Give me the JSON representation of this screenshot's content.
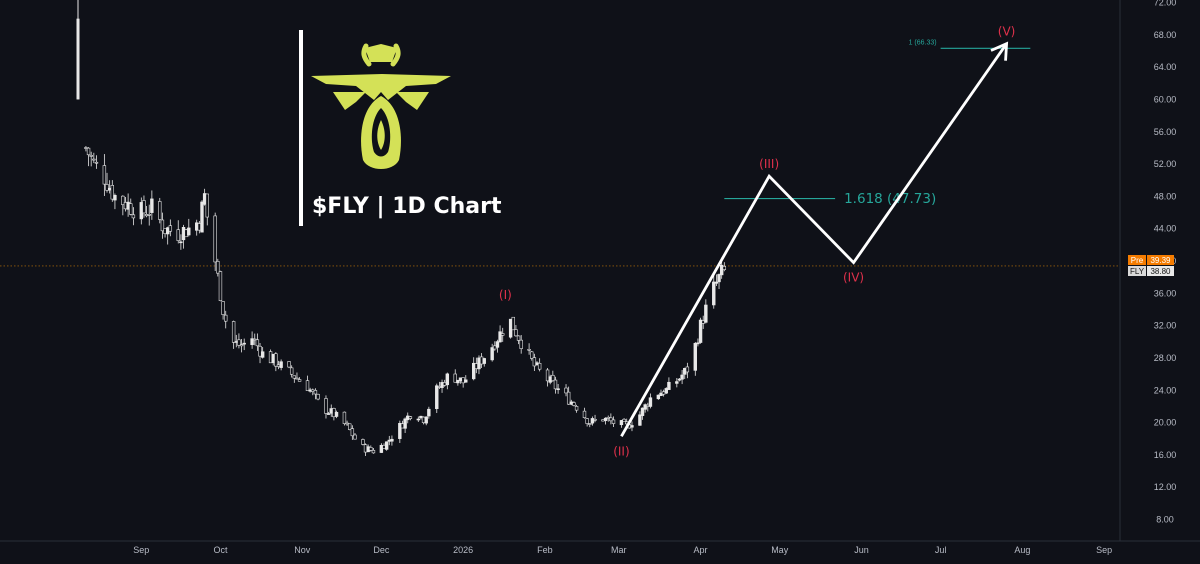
{
  "colors": {
    "background": "#0f1118",
    "candle": "#e8e8e8",
    "projection": "#ffffff",
    "wave_label": "#e0314b",
    "fib": "#26a69a",
    "pre_tag": "#ff9800",
    "logo": "#d4e157",
    "price_line": "#ff9800"
  },
  "chart_title": "$FLY | 1D Chart",
  "logo_icon": "firefly-logo-icon",
  "chart_data": {
    "type": "candlestick",
    "title": "$FLY | 1D Chart",
    "ylim": [
      6,
      73
    ],
    "y_ticks": [
      "72.00",
      "68.00",
      "64.00",
      "60.00",
      "56.00",
      "52.00",
      "48.00",
      "44.00",
      "40.00",
      "36.00",
      "32.00",
      "28.00",
      "24.00",
      "20.00",
      "16.00",
      "12.00",
      "8.00"
    ],
    "y_tick_values": [
      72,
      68,
      64,
      60,
      56,
      52,
      48,
      44,
      40,
      36,
      32,
      28,
      24,
      20,
      16,
      12,
      8
    ],
    "x_ticks": [
      "Sep",
      "Oct",
      "Nov",
      "Dec",
      "2026",
      "Feb",
      "Mar",
      "Apr",
      "May",
      "Jun",
      "Jul",
      "Aug",
      "Sep"
    ],
    "x_tick_dates": [
      "2025-09-01",
      "2025-10-01",
      "2025-11-01",
      "2025-12-01",
      "2026-01-01",
      "2026-02-01",
      "2026-03-01",
      "2026-04-01",
      "2026-05-01",
      "2026-06-01",
      "2026-07-01",
      "2026-08-01",
      "2026-09-01"
    ],
    "x_start": "2025-08-08",
    "price_tags": [
      {
        "label": "Pre",
        "value": "39.39",
        "price": 39.39
      },
      {
        "label": "FLY",
        "value": "38.80",
        "price": 38.8
      }
    ],
    "close_path": [
      [
        "2025-08-08",
        62
      ],
      [
        "2025-08-11",
        54
      ],
      [
        "2025-08-14",
        52
      ],
      [
        "2025-08-18",
        50.5
      ],
      [
        "2025-08-22",
        48
      ],
      [
        "2025-08-27",
        47
      ],
      [
        "2025-09-01",
        46
      ],
      [
        "2025-09-05",
        46.5
      ],
      [
        "2025-09-10",
        44
      ],
      [
        "2025-09-15",
        43.5
      ],
      [
        "2025-09-19",
        44
      ],
      [
        "2025-09-23",
        45
      ],
      [
        "2025-09-25",
        48
      ],
      [
        "2025-09-27",
        43
      ],
      [
        "2025-09-29",
        40
      ],
      [
        "2025-10-02",
        34
      ],
      [
        "2025-10-05",
        30
      ],
      [
        "2025-10-09",
        29.5
      ],
      [
        "2025-10-13",
        30.5
      ],
      [
        "2025-10-17",
        28.5
      ],
      [
        "2025-10-22",
        27.5
      ],
      [
        "2025-10-28",
        26
      ],
      [
        "2025-11-03",
        24.5
      ],
      [
        "2025-11-08",
        22
      ],
      [
        "2025-11-13",
        21
      ],
      [
        "2025-11-18",
        19.5
      ],
      [
        "2025-11-23",
        17
      ],
      [
        "2025-11-28",
        16.5
      ],
      [
        "2025-12-03",
        17.5
      ],
      [
        "2025-12-08",
        19.5
      ],
      [
        "2025-12-13",
        21.5
      ],
      [
        "2025-12-17",
        20.5
      ],
      [
        "2025-12-22",
        24
      ],
      [
        "2025-12-27",
        26
      ],
      [
        "2026-01-01",
        25
      ],
      [
        "2026-01-06",
        27
      ],
      [
        "2026-01-11",
        29
      ],
      [
        "2026-01-16",
        31.5
      ],
      [
        "2026-01-19",
        32.5
      ],
      [
        "2026-01-23",
        30
      ],
      [
        "2026-01-28",
        27
      ],
      [
        "2026-02-03",
        25
      ],
      [
        "2026-02-08",
        23.5
      ],
      [
        "2026-02-13",
        22
      ],
      [
        "2026-02-18",
        20
      ],
      [
        "2026-02-23",
        20.5
      ],
      [
        "2026-02-27",
        20
      ],
      [
        "2026-03-04",
        19.5
      ],
      [
        "2026-03-09",
        21
      ],
      [
        "2026-03-14",
        23.5
      ],
      [
        "2026-03-19",
        24
      ],
      [
        "2026-03-24",
        25.5
      ],
      [
        "2026-03-28",
        27
      ],
      [
        "2026-04-01",
        32
      ],
      [
        "2026-04-05",
        36
      ],
      [
        "2026-04-09",
        38.5
      ],
      [
        "2026-04-11",
        38.8
      ]
    ],
    "projection": {
      "name": "Elliott wave projection",
      "points": [
        {
          "date": "2026-03-02",
          "price": 18.3,
          "label": "(II)"
        },
        {
          "date": "2026-04-27",
          "price": 50.5,
          "label": "(III)"
        },
        {
          "date": "2026-05-29",
          "price": 39.8,
          "label": "(IV)"
        },
        {
          "date": "2026-07-26",
          "price": 66.9,
          "label": "(V)"
        }
      ]
    },
    "wave_labels": [
      {
        "label": "(I)",
        "date": "2026-01-17",
        "price": 34.3
      },
      {
        "label": "(II)",
        "date": "2026-03-02",
        "price": 18.3
      },
      {
        "label": "(III)",
        "date": "2026-04-27",
        "price": 50.5
      },
      {
        "label": "(IV)",
        "date": "2026-05-29",
        "price": 39.8
      },
      {
        "label": "(V)",
        "date": "2026-07-26",
        "price": 66.9
      }
    ],
    "fib_levels": [
      {
        "label": "1.618 (47.73)",
        "price": 47.73,
        "date_from": "2026-04-10",
        "date_to": "2026-05-22",
        "size": "large"
      },
      {
        "label": "1 (66.33)",
        "price": 66.33,
        "date_from": "2026-07-01",
        "date_to": "2026-08-04",
        "size": "small"
      }
    ],
    "grid": false,
    "current_price_line": 39.39
  }
}
